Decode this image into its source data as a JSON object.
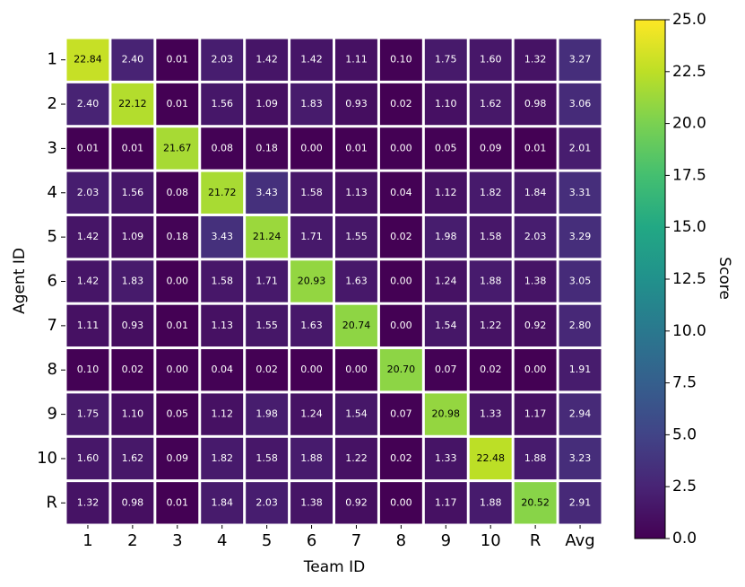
{
  "chart_data": {
    "type": "heatmap",
    "x_label": "Team ID",
    "y_label": "Agent ID",
    "x_categories": [
      "1",
      "2",
      "3",
      "4",
      "5",
      "6",
      "7",
      "8",
      "9",
      "10",
      "R",
      "Avg"
    ],
    "y_categories": [
      "1",
      "2",
      "3",
      "4",
      "5",
      "6",
      "7",
      "8",
      "9",
      "10",
      "R"
    ],
    "colormap": "viridis",
    "values": [
      [
        22.84,
        2.4,
        0.01,
        2.03,
        1.42,
        1.42,
        1.11,
        0.1,
        1.75,
        1.6,
        1.32,
        3.27
      ],
      [
        2.4,
        22.12,
        0.01,
        1.56,
        1.09,
        1.83,
        0.93,
        0.02,
        1.1,
        1.62,
        0.98,
        3.06
      ],
      [
        0.01,
        0.01,
        21.67,
        0.08,
        0.18,
        0.0,
        0.01,
        0.0,
        0.05,
        0.09,
        0.01,
        2.01
      ],
      [
        2.03,
        1.56,
        0.08,
        21.72,
        3.43,
        1.58,
        1.13,
        0.04,
        1.12,
        1.82,
        1.84,
        3.31
      ],
      [
        1.42,
        1.09,
        0.18,
        3.43,
        21.24,
        1.71,
        1.55,
        0.02,
        1.98,
        1.58,
        2.03,
        3.29
      ],
      [
        1.42,
        1.83,
        0.0,
        1.58,
        1.71,
        20.93,
        1.63,
        0.0,
        1.24,
        1.88,
        1.38,
        3.05
      ],
      [
        1.11,
        0.93,
        0.01,
        1.13,
        1.55,
        1.63,
        20.74,
        0.0,
        1.54,
        1.22,
        0.92,
        2.8
      ],
      [
        0.1,
        0.02,
        0.0,
        0.04,
        0.02,
        0.0,
        0.0,
        20.7,
        0.07,
        0.02,
        0.0,
        1.91
      ],
      [
        1.75,
        1.1,
        0.05,
        1.12,
        1.98,
        1.24,
        1.54,
        0.07,
        20.98,
        1.33,
        1.17,
        2.94
      ],
      [
        1.6,
        1.62,
        0.09,
        1.82,
        1.58,
        1.88,
        1.22,
        0.02,
        1.33,
        22.48,
        1.88,
        3.23
      ],
      [
        1.32,
        0.98,
        0.01,
        1.84,
        2.03,
        1.38,
        0.92,
        0.0,
        1.17,
        1.88,
        20.52,
        2.91
      ]
    ],
    "value_labels": [
      [
        "22.84",
        "2.40",
        "0.01",
        "2.03",
        "1.42",
        "1.42",
        "1.11",
        "0.10",
        "1.75",
        "1.60",
        "1.32",
        "3.27"
      ],
      [
        "2.40",
        "22.12",
        "0.01",
        "1.56",
        "1.09",
        "1.83",
        "0.93",
        "0.02",
        "1.10",
        "1.62",
        "0.98",
        "3.06"
      ],
      [
        "0.01",
        "0.01",
        "21.67",
        "0.08",
        "0.18",
        "0.00",
        "0.01",
        "0.00",
        "0.05",
        "0.09",
        "0.01",
        "2.01"
      ],
      [
        "2.03",
        "1.56",
        "0.08",
        "21.72",
        "3.43",
        "1.58",
        "1.13",
        "0.04",
        "1.12",
        "1.82",
        "1.84",
        "3.31"
      ],
      [
        "1.42",
        "1.09",
        "0.18",
        "3.43",
        "21.24",
        "1.71",
        "1.55",
        "0.02",
        "1.98",
        "1.58",
        "2.03",
        "3.29"
      ],
      [
        "1.42",
        "1.83",
        "0.00",
        "1.58",
        "1.71",
        "20.93",
        "1.63",
        "0.00",
        "1.24",
        "1.88",
        "1.38",
        "3.05"
      ],
      [
        "1.11",
        "0.93",
        "0.01",
        "1.13",
        "1.55",
        "1.63",
        "20.74",
        "0.00",
        "1.54",
        "1.22",
        "0.92",
        "2.80"
      ],
      [
        "0.10",
        "0.02",
        "0.00",
        "0.04",
        "0.02",
        "0.00",
        "0.00",
        "20.70",
        "0.07",
        "0.02",
        "0.00",
        "1.91"
      ],
      [
        "1.75",
        "1.10",
        "0.05",
        "1.12",
        "1.98",
        "1.24",
        "1.54",
        "0.07",
        "20.98",
        "1.33",
        "1.17",
        "2.94"
      ],
      [
        "1.60",
        "1.62",
        "0.09",
        "1.82",
        "1.58",
        "1.88",
        "1.22",
        "0.02",
        "1.33",
        "22.48",
        "1.88",
        "3.23"
      ],
      [
        "1.32",
        "0.98",
        "0.01",
        "1.84",
        "2.03",
        "1.38",
        "0.92",
        "0.00",
        "1.17",
        "1.88",
        "20.52",
        "2.91"
      ]
    ],
    "colorbar": {
      "label": "Score",
      "lim": [
        0,
        25
      ],
      "ticks": [
        {
          "value": 0,
          "label": "0.0"
        },
        2.5,
        {
          "value": 5,
          "label": "5.0"
        },
        7.5,
        {
          "value": 10,
          "label": "10.0"
        },
        12.5,
        {
          "value": 15,
          "label": "15.0"
        },
        17.5,
        {
          "value": 20,
          "label": "20.0"
        },
        22.5,
        {
          "value": 25,
          "label": "25.0"
        }
      ]
    }
  }
}
